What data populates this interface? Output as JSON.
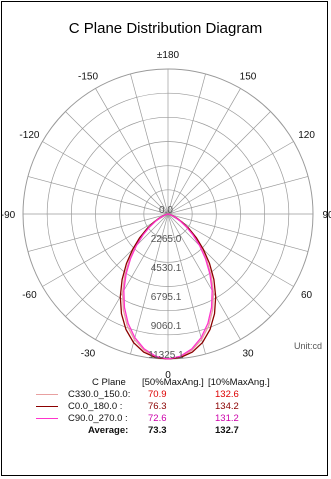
{
  "chart_data": {
    "type": "polar",
    "title": "C Plane Distribution Diagram",
    "unit_label": "Unit:cd",
    "radial_ticks": [
      "0.0",
      "2265.0",
      "4530.1",
      "6795.1",
      "9060.1",
      "11325.1"
    ],
    "radial_values": [
      0,
      2265.0,
      4530.1,
      6795.1,
      9060.1,
      11325.1
    ],
    "rmax": 11325.1,
    "angle_labels": [
      {
        "deg": 180,
        "text": "±180"
      },
      {
        "deg": 150,
        "text": "150"
      },
      {
        "deg": 120,
        "text": "120"
      },
      {
        "deg": 90,
        "text": "90"
      },
      {
        "deg": 60,
        "text": "60"
      },
      {
        "deg": 30,
        "text": "30"
      },
      {
        "deg": 0,
        "text": "0"
      },
      {
        "deg": -30,
        "text": "-30"
      },
      {
        "deg": -60,
        "text": "-60"
      },
      {
        "deg": -90,
        "text": "-90"
      },
      {
        "deg": -120,
        "text": "-120"
      },
      {
        "deg": -150,
        "text": "-150"
      }
    ],
    "series": [
      {
        "name": "C330.0_150.0:",
        "color": "#e8a0a0",
        "points": [
          [
            0,
            11325
          ],
          [
            5,
            11200
          ],
          [
            10,
            10800
          ],
          [
            15,
            10150
          ],
          [
            20,
            9300
          ],
          [
            25,
            8250
          ],
          [
            30,
            7100
          ],
          [
            35,
            5900
          ],
          [
            40,
            4700
          ],
          [
            45,
            3600
          ],
          [
            50,
            2650
          ],
          [
            55,
            1800
          ],
          [
            60,
            1150
          ],
          [
            65,
            650
          ],
          [
            70,
            320
          ],
          [
            75,
            120
          ],
          [
            80,
            40
          ],
          [
            90,
            0
          ]
        ]
      },
      {
        "name": "C0.0_180.0 :",
        "color": "#8b0000",
        "points": [
          [
            0,
            11325
          ],
          [
            5,
            11250
          ],
          [
            10,
            10950
          ],
          [
            15,
            10400
          ],
          [
            20,
            9600
          ],
          [
            25,
            8600
          ],
          [
            30,
            7450
          ],
          [
            35,
            6250
          ],
          [
            40,
            5050
          ],
          [
            45,
            3900
          ],
          [
            50,
            2900
          ],
          [
            55,
            2000
          ],
          [
            60,
            1300
          ],
          [
            65,
            750
          ],
          [
            70,
            380
          ],
          [
            75,
            150
          ],
          [
            80,
            50
          ],
          [
            90,
            0
          ]
        ]
      },
      {
        "name": "C90.0_270.0 :",
        "color": "#ff33cc",
        "points": [
          [
            0,
            11325
          ],
          [
            5,
            11150
          ],
          [
            10,
            10700
          ],
          [
            15,
            10000
          ],
          [
            20,
            9100
          ],
          [
            25,
            8050
          ],
          [
            30,
            6900
          ],
          [
            35,
            5700
          ],
          [
            40,
            4550
          ],
          [
            45,
            3500
          ],
          [
            50,
            2550
          ],
          [
            55,
            1750
          ],
          [
            60,
            1100
          ],
          [
            65,
            620
          ],
          [
            70,
            300
          ],
          [
            75,
            110
          ],
          [
            80,
            35
          ],
          [
            90,
            0
          ]
        ]
      }
    ]
  },
  "legend": {
    "header_label": "C Plane",
    "header_col1": "[50%MaxAng.]",
    "header_col2": "[10%MaxAng.]",
    "rows": [
      {
        "name": "C330.0_150.0:",
        "v50": "70.9",
        "v10": "132.6",
        "color": "#e8a0a0",
        "v50_color": "#dd0000",
        "v10_color": "#dd0000"
      },
      {
        "name": "C0.0_180.0  :",
        "v50": "76.3",
        "v10": "134.2",
        "color": "#8b0000",
        "v50_color": "#8b0000",
        "v10_color": "#8b0000"
      },
      {
        "name": "C90.0_270.0  :",
        "v50": "72.6",
        "v10": "131.2",
        "color": "#ff33cc",
        "v50_color": "#cc00aa",
        "v10_color": "#cc00aa"
      }
    ],
    "average_label": "Average:",
    "average_v50": "73.3",
    "average_v10": "132.7"
  }
}
